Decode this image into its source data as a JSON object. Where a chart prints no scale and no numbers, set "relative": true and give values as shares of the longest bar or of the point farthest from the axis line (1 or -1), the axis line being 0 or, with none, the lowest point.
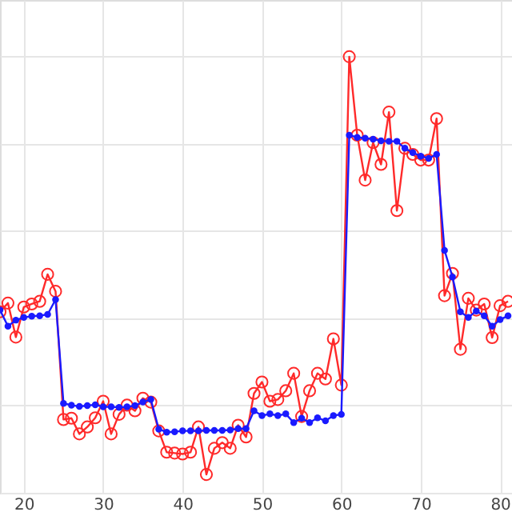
{
  "chart_data": {
    "type": "line",
    "relative": true,
    "xlim": [
      17,
      81.5
    ],
    "xticks": [
      20,
      30,
      40,
      50,
      60,
      70,
      80
    ],
    "grid": true,
    "tick_labels": "x",
    "x": [
      17,
      18,
      19,
      20,
      21,
      22,
      23,
      24,
      25,
      26,
      27,
      28,
      29,
      30,
      31,
      32,
      33,
      34,
      35,
      36,
      37,
      38,
      39,
      40,
      41,
      42,
      43,
      44,
      45,
      46,
      47,
      48,
      49,
      50,
      51,
      52,
      53,
      54,
      55,
      56,
      57,
      58,
      59,
      60,
      61,
      62,
      63,
      64,
      65,
      66,
      67,
      68,
      69,
      70,
      71,
      72,
      73,
      74,
      75,
      76,
      77,
      78,
      79,
      80,
      81
    ],
    "series": [
      {
        "color": "#ff2a2a",
        "marker": "circle",
        "values": [
          0.415,
          0.435,
          0.357,
          0.426,
          0.433,
          0.439,
          0.501,
          0.462,
          0.168,
          0.171,
          0.135,
          0.151,
          0.172,
          0.21,
          0.135,
          0.18,
          0.201,
          0.188,
          0.217,
          0.208,
          0.142,
          0.093,
          0.091,
          0.089,
          0.093,
          0.151,
          0.042,
          0.102,
          0.115,
          0.102,
          0.155,
          0.128,
          0.228,
          0.254,
          0.21,
          0.214,
          0.234,
          0.274,
          0.175,
          0.234,
          0.274,
          0.261,
          0.353,
          0.247,
          1.0,
          0.82,
          0.717,
          0.803,
          0.753,
          0.873,
          0.647,
          0.79,
          0.776,
          0.763,
          0.763,
          0.858,
          0.452,
          0.503,
          0.329,
          0.446,
          0.419,
          0.433,
          0.356,
          0.429,
          0.439
        ]
      },
      {
        "color": "#1a1aff",
        "marker": "circle",
        "values": [
          0.419,
          0.382,
          0.396,
          0.402,
          0.405,
          0.406,
          0.409,
          0.443,
          0.205,
          0.201,
          0.198,
          0.2,
          0.202,
          0.197,
          0.197,
          0.196,
          0.197,
          0.2,
          0.208,
          0.214,
          0.146,
          0.139,
          0.14,
          0.142,
          0.142,
          0.142,
          0.143,
          0.143,
          0.143,
          0.144,
          0.147,
          0.147,
          0.188,
          0.177,
          0.181,
          0.177,
          0.181,
          0.161,
          0.171,
          0.161,
          0.172,
          0.165,
          0.177,
          0.18,
          0.82,
          0.815,
          0.813,
          0.811,
          0.807,
          0.806,
          0.806,
          0.79,
          0.78,
          0.772,
          0.767,
          0.776,
          0.556,
          0.495,
          0.415,
          0.402,
          0.417,
          0.406,
          0.382,
          0.397,
          0.406
        ]
      }
    ]
  }
}
